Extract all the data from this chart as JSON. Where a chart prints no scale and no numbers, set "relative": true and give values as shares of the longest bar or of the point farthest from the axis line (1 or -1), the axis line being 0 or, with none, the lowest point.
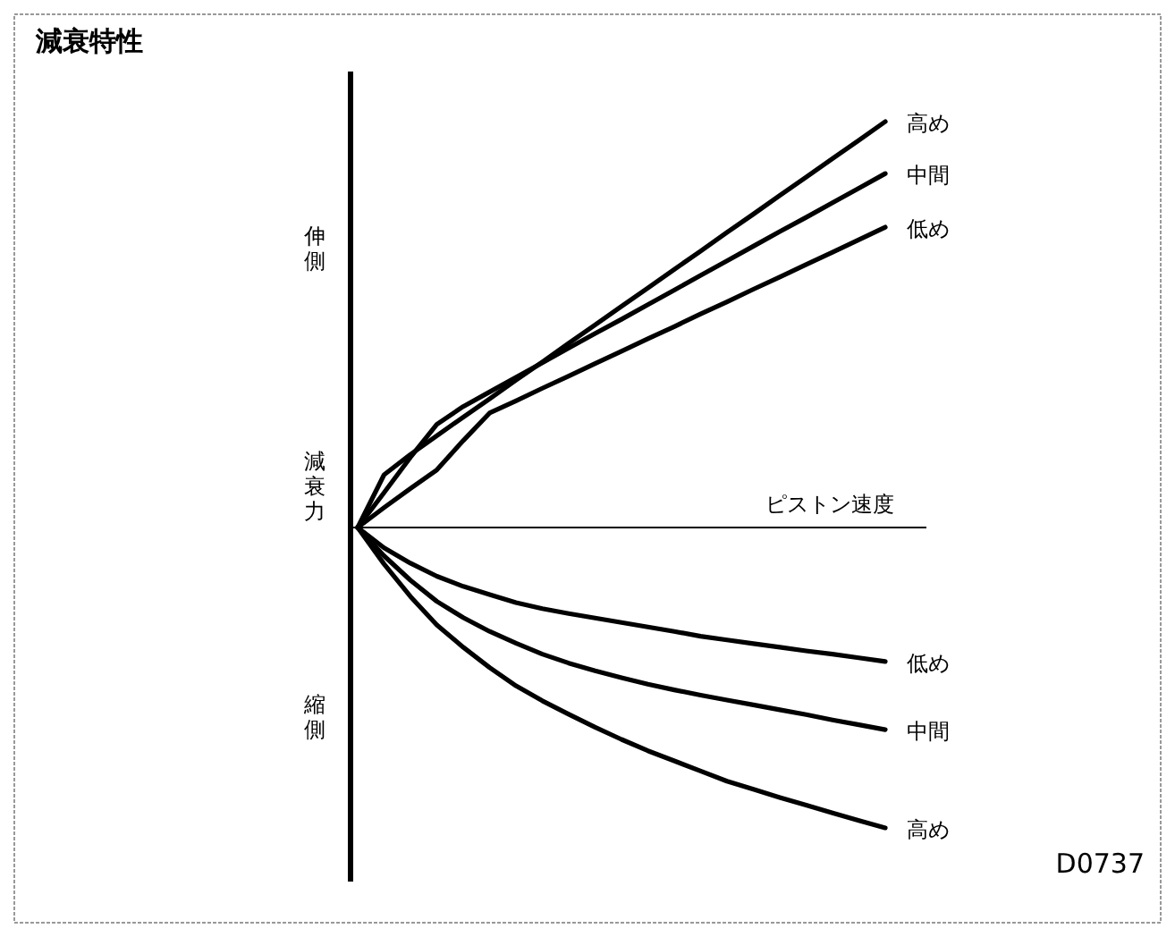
{
  "chart_data": {
    "type": "line",
    "title": "減衰特性",
    "xlabel": "ピストン速度",
    "ylabel": "減衰力",
    "relative": true,
    "line_style": "solid",
    "annotations": [
      "伸側",
      "縮側",
      "D0737"
    ],
    "categories": [
      null,
      null,
      null,
      null,
      null,
      null,
      null,
      null,
      null,
      null,
      null,
      null,
      null,
      null,
      null,
      null,
      null,
      null,
      null,
      null,
      null
    ],
    "series": [
      {
        "name": "高め",
        "color": "#000000",
        "values": [
          0,
          0.13,
          0.18,
          0.226,
          0.272,
          0.317,
          0.363,
          0.408,
          0.454,
          0.499,
          0.545,
          0.59,
          0.636,
          0.681,
          0.727,
          0.772,
          0.818,
          0.863,
          0.909,
          0.954,
          1
        ]
      },
      {
        "name": "中間",
        "color": "#000000",
        "values": [
          0,
          0.086,
          0.173,
          0.254,
          0.298,
          0.334,
          0.37,
          0.406,
          0.442,
          0.478,
          0.513,
          0.549,
          0.585,
          0.621,
          0.657,
          0.693,
          0.729,
          0.764,
          0.8,
          0.836,
          0.872
        ]
      },
      {
        "name": "低め",
        "color": "#000000",
        "values": [
          0,
          0.049,
          0.096,
          0.142,
          0.214,
          0.282,
          0.312,
          0.343,
          0.373,
          0.404,
          0.434,
          0.465,
          0.495,
          0.526,
          0.556,
          0.587,
          0.617,
          0.648,
          0.678,
          0.709,
          0.74
        ]
      },
      {
        "name": "低め",
        "color": "#000000",
        "values": [
          0,
          -0.05,
          -0.088,
          -0.12,
          -0.145,
          -0.165,
          -0.185,
          -0.2,
          -0.212,
          -0.223,
          -0.234,
          -0.245,
          -0.256,
          -0.268,
          -0.277,
          -0.286,
          -0.295,
          -0.304,
          -0.312,
          -0.321,
          -0.33
        ]
      },
      {
        "name": "中間",
        "color": "#000000",
        "values": [
          0,
          -0.07,
          -0.13,
          -0.182,
          -0.222,
          -0.256,
          -0.285,
          -0.312,
          -0.334,
          -0.353,
          -0.37,
          -0.386,
          -0.4,
          -0.413,
          -0.425,
          -0.437,
          -0.449,
          -0.461,
          -0.474,
          -0.486,
          -0.498
        ]
      },
      {
        "name": "高め",
        "color": "#000000",
        "values": [
          0,
          -0.09,
          -0.17,
          -0.24,
          -0.295,
          -0.345,
          -0.39,
          -0.427,
          -0.46,
          -0.492,
          -0.522,
          -0.55,
          -0.575,
          -0.6,
          -0.625,
          -0.645,
          -0.665,
          -0.684,
          -0.703,
          -0.722,
          -0.74
        ]
      }
    ]
  }
}
